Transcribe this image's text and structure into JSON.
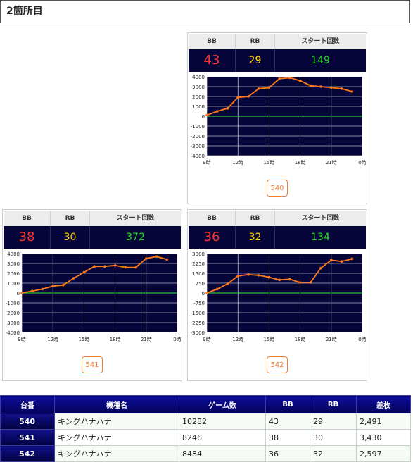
{
  "section_title": "2箇所目",
  "header_labels": {
    "bb": "BB",
    "rb": "RB",
    "start": "スタート回数"
  },
  "colors": {
    "bb": "#ff3030",
    "rb": "#ffd200",
    "start": "#22dd22",
    "line": "#ff7a1a",
    "zero": "#22cc22",
    "chart_bg": "#05053a"
  },
  "machines": [
    {
      "id": "540",
      "bb": "43",
      "rb": "29",
      "start": "149"
    },
    {
      "id": "541",
      "bb": "38",
      "rb": "30",
      "start": "372"
    },
    {
      "id": "542",
      "bb": "36",
      "rb": "32",
      "start": "134"
    }
  ],
  "chart_data": [
    {
      "type": "line",
      "x_ticks": [
        "9時",
        "12時",
        "15時",
        "18時",
        "21時",
        "0時"
      ],
      "y_ticks": [
        "4000",
        "3000",
        "2000",
        "1000",
        "0",
        "-1000",
        "-2000",
        "-3000",
        "-4000"
      ],
      "ylim": [
        -4000,
        4000
      ],
      "xlim": [
        9,
        24
      ],
      "x": [
        9,
        10,
        11,
        12,
        13,
        14,
        15,
        16,
        17,
        18,
        19,
        20,
        21,
        22,
        23
      ],
      "values": [
        100,
        500,
        800,
        1900,
        2000,
        2800,
        2900,
        3800,
        3900,
        3600,
        3100,
        3000,
        2900,
        2800,
        2500
      ]
    },
    {
      "type": "line",
      "x_ticks": [
        "9時",
        "12時",
        "15時",
        "18時",
        "21時",
        "0時"
      ],
      "y_ticks": [
        "4000",
        "3000",
        "2000",
        "1000",
        "0",
        "-1000",
        "-2000",
        "-3000",
        "-4000"
      ],
      "ylim": [
        -4000,
        4000
      ],
      "xlim": [
        9,
        24
      ],
      "x": [
        9,
        10,
        11,
        12,
        13,
        14,
        15,
        16,
        17,
        18,
        19,
        20,
        21,
        22,
        23
      ],
      "values": [
        0,
        200,
        400,
        700,
        800,
        1500,
        2100,
        2700,
        2700,
        2800,
        2600,
        2600,
        3500,
        3700,
        3400
      ]
    },
    {
      "type": "line",
      "x_ticks": [
        "9時",
        "12時",
        "15時",
        "18時",
        "21時",
        "0時"
      ],
      "y_ticks": [
        "3000",
        "2250",
        "1500",
        "750",
        "0",
        "-750",
        "-1500",
        "-2250",
        "-3000"
      ],
      "ylim": [
        -3000,
        3000
      ],
      "xlim": [
        9,
        24
      ],
      "x": [
        9,
        10,
        11,
        12,
        13,
        14,
        15,
        16,
        17,
        18,
        19,
        20,
        21,
        22,
        23
      ],
      "values": [
        0,
        300,
        700,
        1300,
        1400,
        1350,
        1200,
        1000,
        1050,
        800,
        800,
        1900,
        2500,
        2400,
        2600
      ]
    }
  ],
  "table": {
    "headers": [
      "台番",
      "機種名",
      "ゲーム数",
      "BB",
      "RB",
      "差枚"
    ],
    "rows": [
      [
        "540",
        "キングハナハナ",
        "10282",
        "43",
        "29",
        "2,491"
      ],
      [
        "541",
        "キングハナハナ",
        "8246",
        "38",
        "30",
        "3,430"
      ],
      [
        "542",
        "キングハナハナ",
        "8484",
        "36",
        "32",
        "2,597"
      ]
    ]
  }
}
